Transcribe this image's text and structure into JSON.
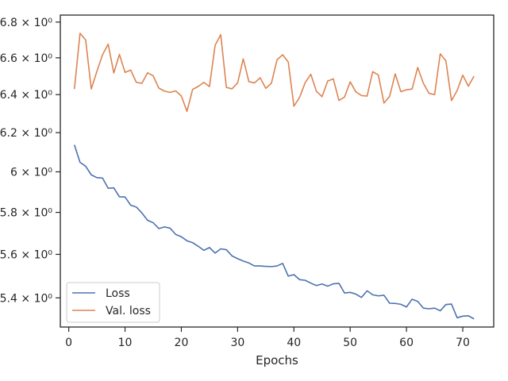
{
  "chart_data": {
    "type": "line",
    "title": "",
    "xlabel": "Epochs",
    "ylabel": "",
    "yscale": "log",
    "xlim": [
      -1.5,
      75.5
    ],
    "ylim": [
      5.27,
      6.84
    ],
    "grid": false,
    "legend_position": "lower-left",
    "x_ticks": [
      0,
      10,
      20,
      30,
      40,
      50,
      60,
      70
    ],
    "x_tick_labels": [
      "0",
      "10",
      "20",
      "30",
      "40",
      "50",
      "60",
      "70"
    ],
    "y_ticks": [
      5.4,
      5.6,
      5.8,
      6.0,
      6.2,
      6.4,
      6.6,
      6.8
    ],
    "y_tick_labels": [
      "5.4 × 10⁰",
      "5.6 × 10⁰",
      "5.8 × 10⁰",
      "6 × 10⁰",
      "6.2 × 10⁰",
      "6.4 × 10⁰",
      "6.6 × 10⁰",
      "6.8 × 10⁰"
    ],
    "x": [
      1,
      2,
      3,
      4,
      5,
      6,
      7,
      8,
      9,
      10,
      11,
      12,
      13,
      14,
      15,
      16,
      17,
      18,
      19,
      20,
      21,
      22,
      23,
      24,
      25,
      26,
      27,
      28,
      29,
      30,
      31,
      32,
      33,
      34,
      35,
      36,
      37,
      38,
      39,
      40,
      41,
      42,
      43,
      44,
      45,
      46,
      47,
      48,
      49,
      50,
      51,
      52,
      53,
      54,
      55,
      56,
      57,
      58,
      59,
      60,
      61,
      62,
      63,
      64,
      65,
      66,
      67,
      68,
      69,
      70,
      71,
      72
    ],
    "series": [
      {
        "name": "Loss",
        "color": "#4c72b0",
        "values": [
          6.137,
          6.048,
          6.028,
          5.985,
          5.971,
          5.969,
          5.918,
          5.92,
          5.876,
          5.875,
          5.835,
          5.826,
          5.797,
          5.762,
          5.75,
          5.722,
          5.73,
          5.724,
          5.694,
          5.683,
          5.664,
          5.655,
          5.638,
          5.619,
          5.632,
          5.606,
          5.626,
          5.622,
          5.593,
          5.58,
          5.569,
          5.56,
          5.546,
          5.546,
          5.544,
          5.543,
          5.546,
          5.558,
          5.499,
          5.506,
          5.483,
          5.48,
          5.467,
          5.456,
          5.463,
          5.453,
          5.464,
          5.466,
          5.422,
          5.425,
          5.417,
          5.402,
          5.432,
          5.414,
          5.409,
          5.412,
          5.376,
          5.375,
          5.371,
          5.359,
          5.394,
          5.384,
          5.354,
          5.351,
          5.354,
          5.342,
          5.37,
          5.372,
          5.311,
          5.318,
          5.32,
          5.306
        ]
      },
      {
        "name": "Val. loss",
        "color": "#dd8452",
        "values": [
          6.43,
          6.737,
          6.699,
          6.43,
          6.526,
          6.617,
          6.676,
          6.517,
          6.619,
          6.52,
          6.533,
          6.466,
          6.461,
          6.518,
          6.501,
          6.435,
          6.419,
          6.412,
          6.42,
          6.393,
          6.311,
          6.428,
          6.444,
          6.466,
          6.443,
          6.669,
          6.729,
          6.439,
          6.431,
          6.463,
          6.594,
          6.47,
          6.463,
          6.491,
          6.434,
          6.461,
          6.589,
          6.617,
          6.577,
          6.338,
          6.385,
          6.464,
          6.51,
          6.418,
          6.389,
          6.473,
          6.485,
          6.369,
          6.387,
          6.469,
          6.415,
          6.395,
          6.392,
          6.524,
          6.506,
          6.355,
          6.39,
          6.512,
          6.416,
          6.426,
          6.43,
          6.547,
          6.461,
          6.407,
          6.4,
          6.622,
          6.584,
          6.368,
          6.422,
          6.505,
          6.445,
          6.5
        ]
      }
    ]
  }
}
